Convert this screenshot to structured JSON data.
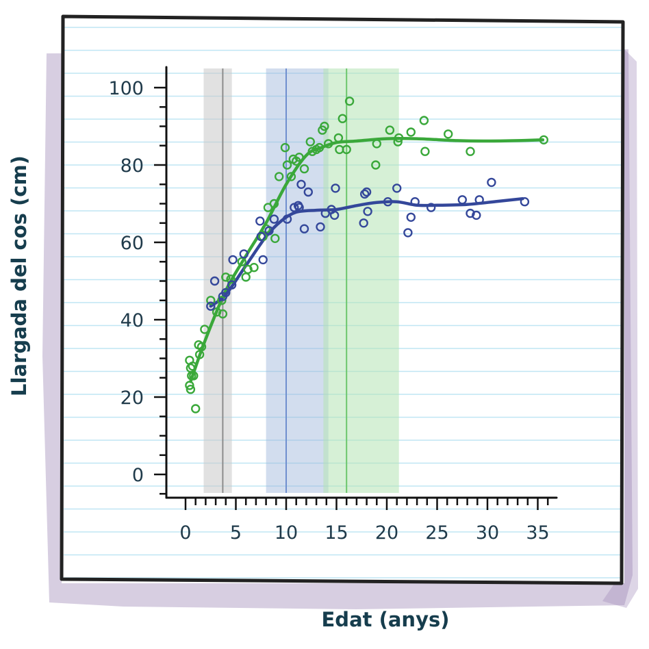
{
  "chart_data": {
    "type": "scatter",
    "title": "",
    "xlabel": "Edat (anys)",
    "ylabel": "Llargada del cos (cm)",
    "xlim": [
      -1,
      37
    ],
    "ylim": [
      -5,
      105
    ],
    "x_ticks": [
      0,
      5,
      10,
      15,
      20,
      25,
      30,
      35
    ],
    "y_ticks": [
      0,
      20,
      40,
      60,
      80,
      100
    ],
    "grid": false,
    "legend": "none",
    "colors": {
      "green": "#3aa83a",
      "blue": "#34479a",
      "grey_band": "#c8c8c8",
      "grey_line": "#8c8c8c",
      "blue_band": "#9bb3d9",
      "green_band": "#b4e3b4",
      "paper_lines": "#bfe6f4",
      "frame": "#222222",
      "shadow": "#b7a6c8",
      "text": "#1f3a4a"
    },
    "bands": [
      {
        "color": "grey",
        "x_range": [
          1.8,
          4.6
        ],
        "center": 3.7
      },
      {
        "color": "blue",
        "x_range": [
          8.0,
          14.2
        ],
        "center": 10.0
      },
      {
        "color": "green",
        "x_range": [
          13.7,
          21.2
        ],
        "center": 16.0
      }
    ],
    "series": [
      {
        "color": "green",
        "points": [
          [
            0.4,
            29.5
          ],
          [
            0.5,
            27.5
          ],
          [
            0.4,
            23
          ],
          [
            0.5,
            22
          ],
          [
            0.6,
            25.5
          ],
          [
            0.7,
            28
          ],
          [
            0.8,
            25.5
          ],
          [
            1.0,
            17
          ],
          [
            1.3,
            33.5
          ],
          [
            1.4,
            31
          ],
          [
            1.6,
            33
          ],
          [
            1.9,
            37.5
          ],
          [
            2.5,
            45
          ],
          [
            3.1,
            42
          ],
          [
            3.6,
            45
          ],
          [
            3.7,
            41.5
          ],
          [
            4.0,
            51
          ],
          [
            4.5,
            50.5
          ],
          [
            5.6,
            55
          ],
          [
            6.0,
            51
          ],
          [
            6.2,
            53
          ],
          [
            6.8,
            53.5
          ],
          [
            7.7,
            61.5
          ],
          [
            8.0,
            63.5
          ],
          [
            8.2,
            69
          ],
          [
            8.8,
            70
          ],
          [
            8.9,
            61
          ],
          [
            9.3,
            77
          ],
          [
            9.9,
            84.5
          ],
          [
            10.1,
            80
          ],
          [
            10.5,
            77
          ],
          [
            10.7,
            81.5
          ],
          [
            11.0,
            81
          ],
          [
            11.3,
            82
          ],
          [
            11.8,
            79
          ],
          [
            12.4,
            86
          ],
          [
            12.6,
            83.5
          ],
          [
            13.0,
            84
          ],
          [
            13.3,
            84.5
          ],
          [
            13.6,
            89
          ],
          [
            13.8,
            90
          ],
          [
            14.2,
            85.5
          ],
          [
            15.2,
            87
          ],
          [
            15.3,
            84
          ],
          [
            15.6,
            92
          ],
          [
            16.0,
            84
          ],
          [
            16.3,
            96.5
          ],
          [
            18.9,
            80
          ],
          [
            19.0,
            85.5
          ],
          [
            20.3,
            89
          ],
          [
            21.1,
            86
          ],
          [
            21.2,
            87
          ],
          [
            22.4,
            88.5
          ],
          [
            23.7,
            91.5
          ],
          [
            23.8,
            83.5
          ],
          [
            26.1,
            88
          ],
          [
            28.3,
            83.5
          ],
          [
            35.6,
            86.5
          ]
        ],
        "trend": [
          [
            0.5,
            24
          ],
          [
            2,
            35
          ],
          [
            4,
            47.5
          ],
          [
            6,
            56.5
          ],
          [
            8,
            65
          ],
          [
            10,
            75
          ],
          [
            12,
            82.5
          ],
          [
            13.5,
            84.5
          ],
          [
            15,
            85.8
          ],
          [
            17,
            86.2
          ],
          [
            20,
            86.8
          ],
          [
            23,
            86.8
          ],
          [
            27,
            86.3
          ],
          [
            30,
            86.2
          ],
          [
            33,
            86.3
          ],
          [
            35.5,
            86.5
          ]
        ]
      },
      {
        "color": "blue",
        "points": [
          [
            2.5,
            43.5
          ],
          [
            2.9,
            50
          ],
          [
            3.7,
            46
          ],
          [
            4.0,
            47
          ],
          [
            4.6,
            49
          ],
          [
            4.7,
            55.5
          ],
          [
            5.8,
            57
          ],
          [
            7.4,
            65.5
          ],
          [
            7.5,
            61.5
          ],
          [
            7.7,
            55.5
          ],
          [
            8.3,
            63
          ],
          [
            8.8,
            66
          ],
          [
            10.1,
            66
          ],
          [
            10.8,
            69
          ],
          [
            11.2,
            69.5
          ],
          [
            11.3,
            69
          ],
          [
            11.5,
            75
          ],
          [
            11.8,
            63.5
          ],
          [
            12.2,
            73
          ],
          [
            13.4,
            64
          ],
          [
            13.9,
            67.5
          ],
          [
            14.5,
            68.5
          ],
          [
            14.8,
            67
          ],
          [
            14.9,
            74
          ],
          [
            17.7,
            65
          ],
          [
            17.8,
            72.5
          ],
          [
            18.0,
            73
          ],
          [
            18.1,
            68
          ],
          [
            20.1,
            70.5
          ],
          [
            21.0,
            74
          ],
          [
            22.1,
            62.5
          ],
          [
            22.4,
            66.5
          ],
          [
            22.8,
            70.5
          ],
          [
            24.4,
            69
          ],
          [
            27.5,
            71
          ],
          [
            28.3,
            67.5
          ],
          [
            28.9,
            67
          ],
          [
            29.2,
            71
          ],
          [
            30.4,
            75.5
          ],
          [
            33.7,
            70.5
          ]
        ],
        "trend": [
          [
            2.5,
            43.5
          ],
          [
            4,
            46.5
          ],
          [
            6,
            54
          ],
          [
            8,
            61.5
          ],
          [
            9.5,
            65.5
          ],
          [
            11,
            67.8
          ],
          [
            13,
            68.3
          ],
          [
            15,
            68.5
          ],
          [
            17,
            69.5
          ],
          [
            19,
            70.3
          ],
          [
            21,
            70.5
          ],
          [
            23,
            69.6
          ],
          [
            25,
            69.6
          ],
          [
            28,
            69.8
          ],
          [
            31,
            70.6
          ],
          [
            33.5,
            71.3
          ]
        ]
      }
    ]
  }
}
